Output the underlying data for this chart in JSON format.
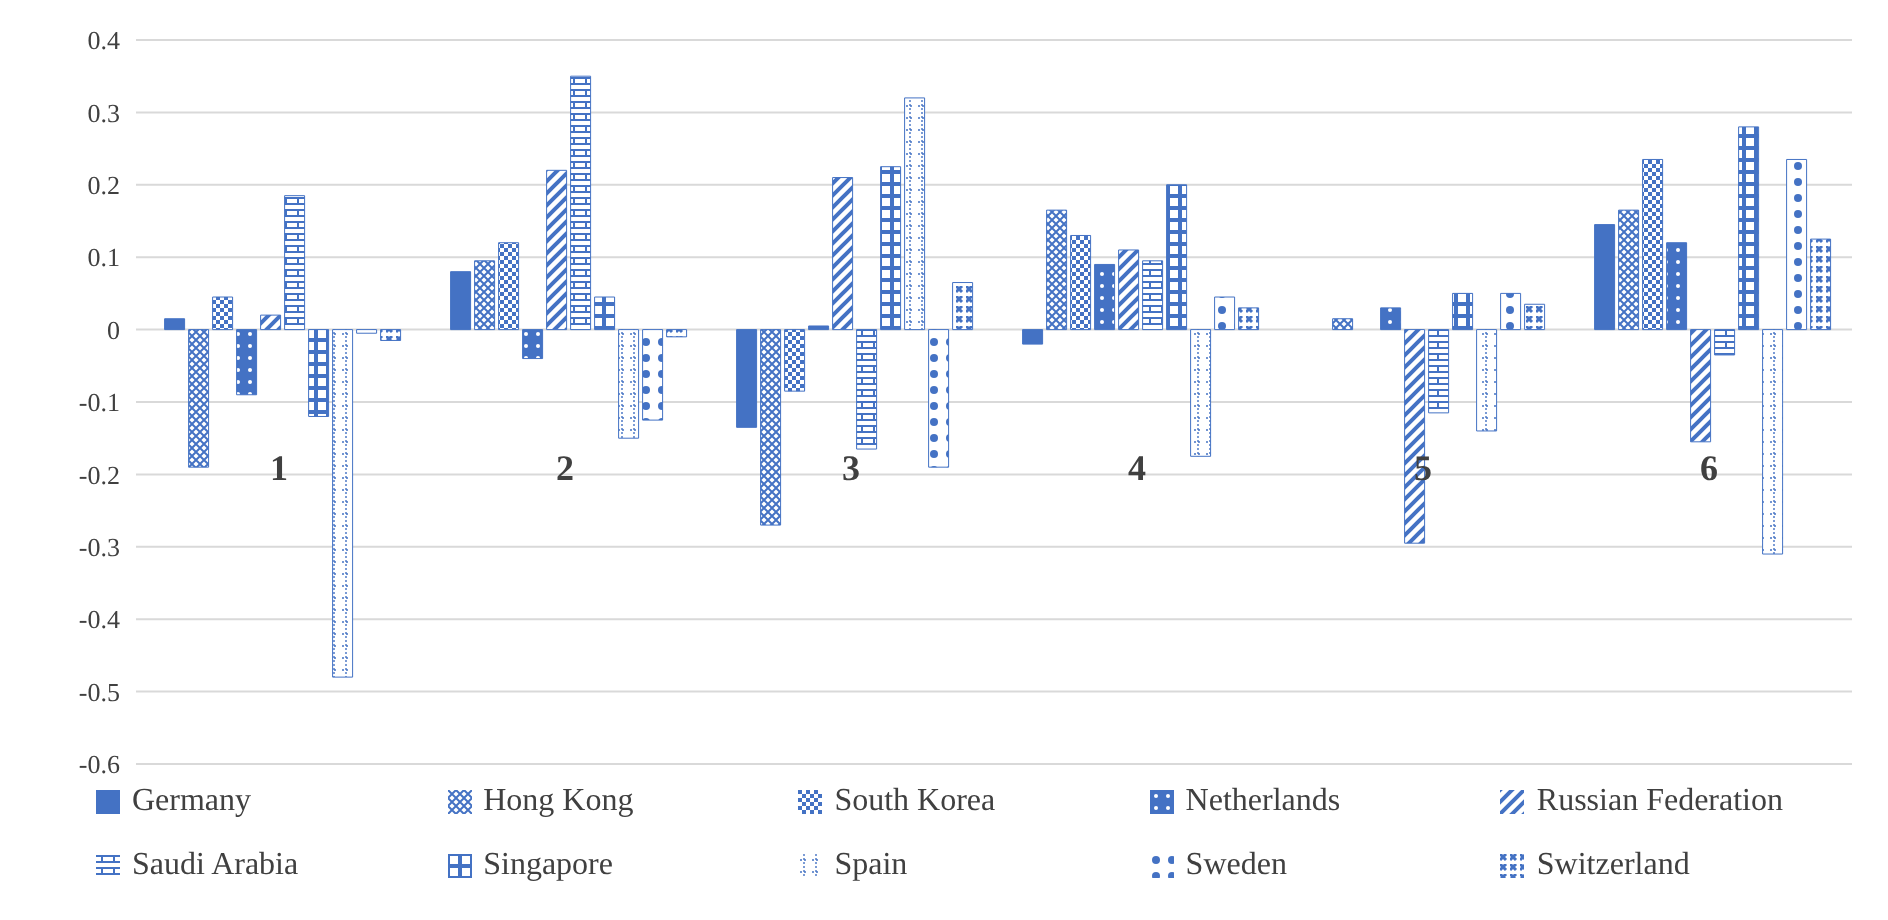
{
  "chart_data": {
    "type": "bar",
    "categories": [
      "1",
      "2",
      "3",
      "4",
      "5",
      "6"
    ],
    "series": [
      {
        "name": "Germany",
        "color": "#4472c4",
        "values": [
          0.015,
          0.08,
          -0.135,
          -0.02,
          0,
          0.145
        ]
      },
      {
        "name": "Hong Kong",
        "color": "#4472c4",
        "values": [
          -0.19,
          0.095,
          -0.27,
          0.165,
          0.015,
          0.165
        ]
      },
      {
        "name": "South Korea",
        "color": "#4472c4",
        "values": [
          0.045,
          0.12,
          -0.085,
          0.13,
          0,
          0.235
        ]
      },
      {
        "name": "Netherlands",
        "color": "#4472c4",
        "values": [
          -0.09,
          -0.04,
          0.005,
          0.09,
          0.03,
          0.12
        ]
      },
      {
        "name": "Russian Federation",
        "color": "#4472c4",
        "values": [
          0.02,
          0.22,
          0.21,
          0.11,
          -0.295,
          -0.155
        ]
      },
      {
        "name": "Saudi Arabia",
        "color": "#4472c4",
        "values": [
          0.185,
          0.35,
          -0.165,
          0.095,
          -0.115,
          -0.035
        ]
      },
      {
        "name": "Singapore",
        "color": "#4472c4",
        "values": [
          -0.12,
          0.045,
          0.225,
          0.2,
          0.05,
          0.28
        ]
      },
      {
        "name": "Spain",
        "color": "#4472c4",
        "values": [
          -0.48,
          -0.15,
          0.32,
          -0.175,
          -0.14,
          -0.31
        ]
      },
      {
        "name": "Sweden",
        "color": "#4472c4",
        "values": [
          -0.005,
          -0.125,
          -0.19,
          0.045,
          0.05,
          0.235
        ]
      },
      {
        "name": "Switzerland",
        "color": "#4472c4",
        "values": [
          -0.015,
          -0.01,
          0.065,
          0.03,
          0.035,
          0.125
        ]
      }
    ],
    "ylim": [
      -0.6,
      0.4
    ],
    "yticks": [
      -0.6,
      -0.5,
      -0.4,
      -0.3,
      -0.2,
      -0.1,
      0,
      0.1,
      0.2,
      0.3,
      0.4
    ],
    "grid": "y",
    "legend": "bottom"
  }
}
